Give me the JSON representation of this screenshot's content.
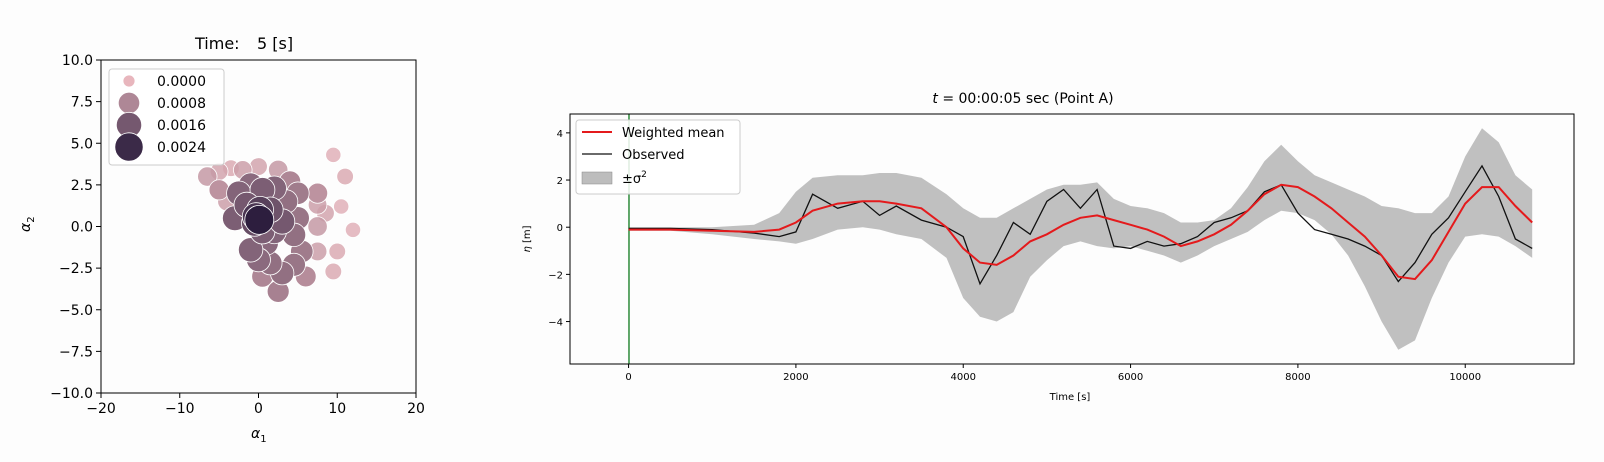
{
  "colors": {
    "bubble_light": "#e8b6bd",
    "bubble_dark": "#2d1e3e",
    "mean_line": "#e41a1c",
    "observed_line": "#111111",
    "band_fill": "#bdbdbd",
    "vline": "#2e8b3a"
  },
  "chart_data": [
    {
      "type": "scatter",
      "title_label": "Time:",
      "title_value": "5 [s]",
      "xlabel_sym": "α",
      "xlabel_sub": "1",
      "ylabel_sym": "α",
      "ylabel_sub": "2",
      "xlim": [
        -20,
        20
      ],
      "ylim": [
        -10,
        10
      ],
      "xticks": [
        -20,
        -10,
        0,
        10,
        20
      ],
      "xtick_labels": [
        "−20",
        "−10",
        "0",
        "10",
        "20"
      ],
      "yticks": [
        10,
        7.5,
        5,
        2.5,
        0,
        -2.5,
        -5,
        -7.5,
        -10
      ],
      "ytick_labels": [
        "10.0",
        "7.5",
        "5.0",
        "2.5",
        "0.0",
        "−2.5",
        "−5.0",
        "−7.5",
        "−10.0"
      ],
      "legend_position": "upper-left",
      "legend": [
        {
          "label": "0.0000",
          "weight": 0.0
        },
        {
          "label": "0.0008",
          "weight": 0.0008
        },
        {
          "label": "0.0016",
          "weight": 0.0016
        },
        {
          "label": "0.0024",
          "weight": 0.0024
        }
      ],
      "points": [
        {
          "x": 9.5,
          "y": 4.3,
          "w": 0.0001
        },
        {
          "x": 11,
          "y": 3.0,
          "w": 0.0002
        },
        {
          "x": 10.5,
          "y": 1.2,
          "w": 0.0001
        },
        {
          "x": 12,
          "y": -0.2,
          "w": 0.0001
        },
        {
          "x": 10,
          "y": -1.5,
          "w": 0.0002
        },
        {
          "x": 9.5,
          "y": -2.7,
          "w": 0.0002
        },
        {
          "x": 7.5,
          "y": 1.3,
          "w": 0.0004
        },
        {
          "x": 7.5,
          "y": 0.0,
          "w": 0.0005
        },
        {
          "x": 8.5,
          "y": 0.8,
          "w": 0.0003
        },
        {
          "x": 7.5,
          "y": 2.0,
          "w": 0.0006
        },
        {
          "x": 7.5,
          "y": -1.5,
          "w": 0.0004
        },
        {
          "x": 6,
          "y": -3.0,
          "w": 0.0007
        },
        {
          "x": 2.5,
          "y": -3.9,
          "w": 0.0009
        },
        {
          "x": 0.5,
          "y": -3.0,
          "w": 0.0008
        },
        {
          "x": -3.5,
          "y": 3.5,
          "w": 0.0002
        },
        {
          "x": -5,
          "y": 3.3,
          "w": 0.0003
        },
        {
          "x": -6.5,
          "y": 3.0,
          "w": 0.0005
        },
        {
          "x": -5,
          "y": 2.2,
          "w": 0.0006
        },
        {
          "x": -4,
          "y": 1.5,
          "w": 0.0004
        },
        {
          "x": -2,
          "y": 3.4,
          "w": 0.0004
        },
        {
          "x": 0,
          "y": 3.6,
          "w": 0.0003
        },
        {
          "x": 2.5,
          "y": 3.4,
          "w": 0.0005
        },
        {
          "x": 4,
          "y": 2.7,
          "w": 0.0008
        },
        {
          "x": 3.5,
          "y": 1.5,
          "w": 0.0012
        },
        {
          "x": 5,
          "y": 2.0,
          "w": 0.001
        },
        {
          "x": 5,
          "y": 0.5,
          "w": 0.0011
        },
        {
          "x": 4.5,
          "y": -0.5,
          "w": 0.0012
        },
        {
          "x": 5.5,
          "y": -1.5,
          "w": 0.001
        },
        {
          "x": 4.5,
          "y": -2.3,
          "w": 0.0011
        },
        {
          "x": 3,
          "y": -2.8,
          "w": 0.0012
        },
        {
          "x": 1.5,
          "y": -2.2,
          "w": 0.0012
        },
        {
          "x": 1,
          "y": -1.0,
          "w": 0.0013
        },
        {
          "x": 2,
          "y": -0.3,
          "w": 0.0014
        },
        {
          "x": -1,
          "y": 2.5,
          "w": 0.0013
        },
        {
          "x": 0.5,
          "y": 2.2,
          "w": 0.0015
        },
        {
          "x": 2,
          "y": 2.3,
          "w": 0.0014
        },
        {
          "x": -2.5,
          "y": 2.0,
          "w": 0.0014
        },
        {
          "x": -3,
          "y": 0.5,
          "w": 0.0015
        },
        {
          "x": -1.5,
          "y": 1.3,
          "w": 0.0016
        },
        {
          "x": 1.5,
          "y": 1.0,
          "w": 0.0017
        },
        {
          "x": 3,
          "y": 0.3,
          "w": 0.0016
        },
        {
          "x": 0.5,
          "y": -0.3,
          "w": 0.0015
        },
        {
          "x": -1,
          "y": -1.4,
          "w": 0.0014
        },
        {
          "x": 0,
          "y": -2.0,
          "w": 0.0013
        },
        {
          "x": -0.5,
          "y": 0.2,
          "w": 0.0018
        },
        {
          "x": 0.2,
          "y": 1.0,
          "w": 0.002
        },
        {
          "x": -0.3,
          "y": 0.6,
          "w": 0.0022
        },
        {
          "x": 0.1,
          "y": 0.4,
          "w": 0.0026
        }
      ]
    },
    {
      "type": "line",
      "title_sym": "t",
      "title_rest": " = 00:00:05 sec (Point A)",
      "xlabel": "Time [s]",
      "ylabel_sym": "η",
      "ylabel_rest": " [m]",
      "xlim": [
        -700,
        11300
      ],
      "ylim": [
        -5.8,
        4.8
      ],
      "xticks": [
        0,
        2000,
        4000,
        6000,
        8000,
        10000
      ],
      "xtick_labels": [
        "0",
        "2000",
        "4000",
        "6000",
        "8000",
        "10000"
      ],
      "yticks": [
        4,
        2,
        0,
        -2,
        -4
      ],
      "ytick_labels": [
        "4",
        "2",
        "0",
        "−2",
        "−4"
      ],
      "current_time_marker": 5,
      "legend_position": "upper-left",
      "legend": {
        "mean": "Weighted mean",
        "observed": "Observed",
        "band_pm": "±σ",
        "band_exp": "2"
      },
      "x": [
        0,
        500,
        1000,
        1500,
        1800,
        2000,
        2200,
        2500,
        2800,
        3000,
        3200,
        3500,
        3800,
        4000,
        4200,
        4400,
        4600,
        4800,
        5000,
        5200,
        5400,
        5600,
        5800,
        6000,
        6200,
        6400,
        6600,
        6800,
        7000,
        7200,
        7400,
        7600,
        7800,
        8000,
        8200,
        8400,
        8600,
        8800,
        9000,
        9200,
        9400,
        9600,
        9800,
        10000,
        10200,
        10400,
        10600,
        10800
      ],
      "series": [
        {
          "role": "mean",
          "values": [
            -0.1,
            -0.1,
            -0.15,
            -0.2,
            -0.1,
            0.2,
            0.7,
            1.0,
            1.1,
            1.1,
            1.0,
            0.8,
            0.0,
            -0.9,
            -1.5,
            -1.6,
            -1.2,
            -0.6,
            -0.3,
            0.1,
            0.4,
            0.5,
            0.3,
            0.1,
            -0.1,
            -0.4,
            -0.8,
            -0.6,
            -0.3,
            0.1,
            0.7,
            1.4,
            1.8,
            1.7,
            1.3,
            0.8,
            0.2,
            -0.4,
            -1.2,
            -2.1,
            -2.2,
            -1.4,
            -0.2,
            1.0,
            1.7,
            1.7,
            0.9,
            0.2
          ]
        },
        {
          "role": "observed",
          "values": [
            -0.05,
            -0.05,
            -0.1,
            -0.25,
            -0.4,
            -0.2,
            1.4,
            0.8,
            1.1,
            0.5,
            0.9,
            0.3,
            0.0,
            -0.4,
            -2.4,
            -1.2,
            0.2,
            -0.3,
            1.1,
            1.6,
            0.8,
            1.6,
            -0.8,
            -0.9,
            -0.6,
            -0.8,
            -0.7,
            -0.4,
            0.2,
            0.4,
            0.7,
            1.5,
            1.8,
            0.6,
            -0.1,
            -0.3,
            -0.5,
            -0.8,
            -1.2,
            -2.3,
            -1.5,
            -0.3,
            0.4,
            1.5,
            2.6,
            1.3,
            -0.5,
            -0.9
          ]
        },
        {
          "role": "lower",
          "values": [
            -0.15,
            -0.15,
            -0.3,
            -0.5,
            -0.6,
            -0.7,
            -0.5,
            -0.1,
            0.0,
            -0.1,
            -0.3,
            -0.5,
            -1.3,
            -3.0,
            -3.8,
            -4.0,
            -3.6,
            -2.1,
            -1.4,
            -0.8,
            -0.6,
            -0.8,
            -0.9,
            -0.8,
            -1.0,
            -1.2,
            -1.5,
            -1.2,
            -0.8,
            -0.5,
            -0.2,
            0.3,
            0.7,
            0.6,
            0.3,
            -0.3,
            -1.2,
            -2.5,
            -4.0,
            -5.2,
            -4.8,
            -3.0,
            -1.5,
            -0.4,
            -0.3,
            -0.4,
            -0.8,
            -1.3
          ]
        },
        {
          "role": "upper",
          "values": [
            0.0,
            0.0,
            0.0,
            0.1,
            0.6,
            1.5,
            2.1,
            2.2,
            2.2,
            2.3,
            2.3,
            2.1,
            1.4,
            0.8,
            0.4,
            0.4,
            0.8,
            1.2,
            1.6,
            1.8,
            1.8,
            1.9,
            1.2,
            0.9,
            0.8,
            0.6,
            0.2,
            0.2,
            0.3,
            0.8,
            1.7,
            2.8,
            3.5,
            2.8,
            2.2,
            1.9,
            1.6,
            1.3,
            0.9,
            0.8,
            0.6,
            0.6,
            1.3,
            3.0,
            4.2,
            3.6,
            2.2,
            1.6
          ]
        }
      ]
    }
  ]
}
